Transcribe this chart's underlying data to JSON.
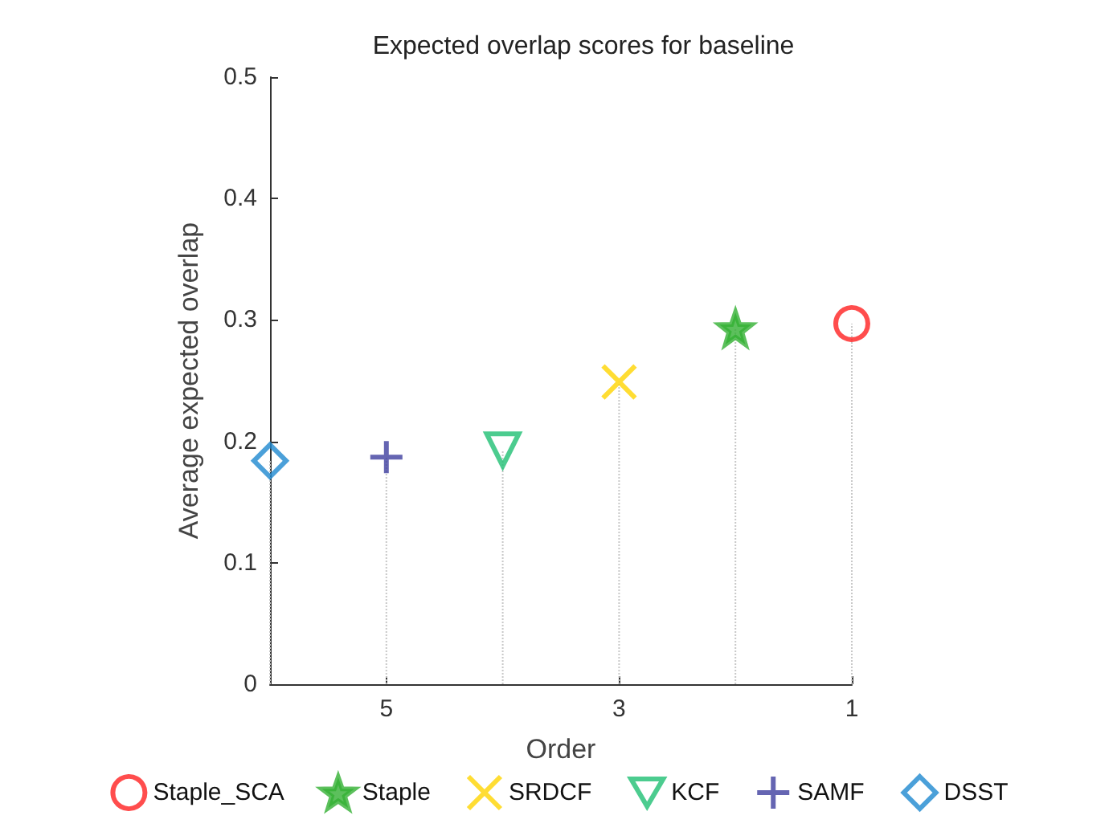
{
  "chart_data": {
    "type": "lollipop",
    "title": "Expected overlap scores for baseline",
    "xlabel": "Order",
    "ylabel": "Average expected overlap",
    "xlim": [
      6,
      1
    ],
    "xticks": [
      5,
      3,
      1
    ],
    "ylim": [
      0,
      0.5
    ],
    "yticks": [
      0,
      0.1,
      0.2,
      0.3,
      0.4,
      0.5
    ],
    "grid": false,
    "legend": "bottom",
    "series": [
      {
        "name": "Staple_SCA",
        "color": "#ff2020",
        "marker": "circle",
        "x": [
          1
        ],
        "values": [
          0.297
        ]
      },
      {
        "name": "Staple",
        "color": "#33b033",
        "marker": "star",
        "x": [
          2
        ],
        "values": [
          0.293
        ]
      },
      {
        "name": "SRDCF",
        "color": "#ffd400",
        "marker": "cross",
        "x": [
          3
        ],
        "values": [
          0.249
        ]
      },
      {
        "name": "KCF",
        "color": "#1fbf73",
        "marker": "triangle",
        "x": [
          4
        ],
        "values": [
          0.193
        ]
      },
      {
        "name": "SAMF",
        "color": "#3f3f9f",
        "marker": "plus",
        "x": [
          5
        ],
        "values": [
          0.187
        ]
      },
      {
        "name": "DSST",
        "color": "#1e88d0",
        "marker": "diamond",
        "x": [
          6
        ],
        "values": [
          0.184
        ]
      }
    ]
  }
}
